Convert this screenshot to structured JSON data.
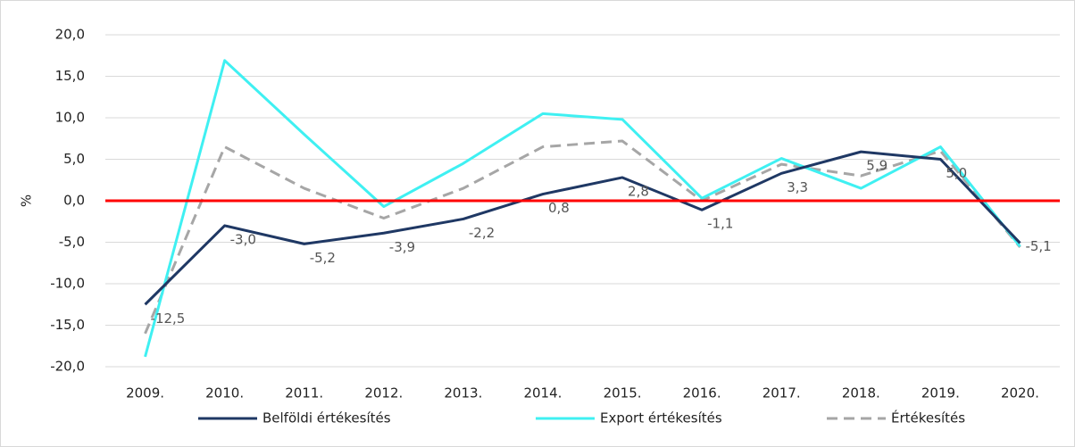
{
  "chart_data": {
    "type": "line",
    "ylabel": "%",
    "categories": [
      "2009.",
      "2010.",
      "2011.",
      "2012.",
      "2013.",
      "2014.",
      "2015.",
      "2016.",
      "2017.",
      "2018.",
      "2019.",
      "2020."
    ],
    "series": [
      {
        "name": "Belföldi értékesítés",
        "color": "#1f3864",
        "dashed": false,
        "values": [
          -12.5,
          -3.0,
          -5.2,
          -3.9,
          -2.2,
          0.8,
          2.8,
          -1.1,
          3.3,
          5.9,
          5.0,
          -5.1
        ],
        "value_labels": [
          "-12,5",
          "-3,0",
          "-5,2",
          "-3,9",
          "-2,2",
          "0,8",
          "2,8",
          "-1,1",
          "3,3",
          "5,9",
          "5,0",
          "-5,1"
        ]
      },
      {
        "name": "Export értékesítés",
        "color": "#3ff0f2",
        "dashed": false,
        "values": [
          -18.8,
          16.9,
          8.0,
          -0.7,
          4.5,
          10.5,
          9.8,
          0.3,
          5.1,
          1.5,
          6.5,
          -5.5
        ]
      },
      {
        "name": "Értékesítés",
        "color": "#a6a6a6",
        "dashed": true,
        "values": [
          -16.0,
          6.5,
          1.5,
          -2.1,
          1.5,
          6.5,
          7.2,
          0.0,
          4.4,
          3.0,
          6.0,
          -5.6
        ]
      }
    ],
    "ylim": [
      -20,
      20
    ],
    "yticks": [
      {
        "value": -20,
        "label": "-20,0"
      },
      {
        "value": -15,
        "label": "-15,0"
      },
      {
        "value": -10,
        "label": "-10,0"
      },
      {
        "value": -5,
        "label": "-5,0"
      },
      {
        "value": 0,
        "label": "0,0"
      },
      {
        "value": 5,
        "label": "5,0"
      },
      {
        "value": 10,
        "label": "10,0"
      },
      {
        "value": 15,
        "label": "15,0"
      },
      {
        "value": 20,
        "label": "20,0"
      }
    ],
    "grid": true,
    "zero_line_color": "#ff0000",
    "legend": "bottom"
  }
}
